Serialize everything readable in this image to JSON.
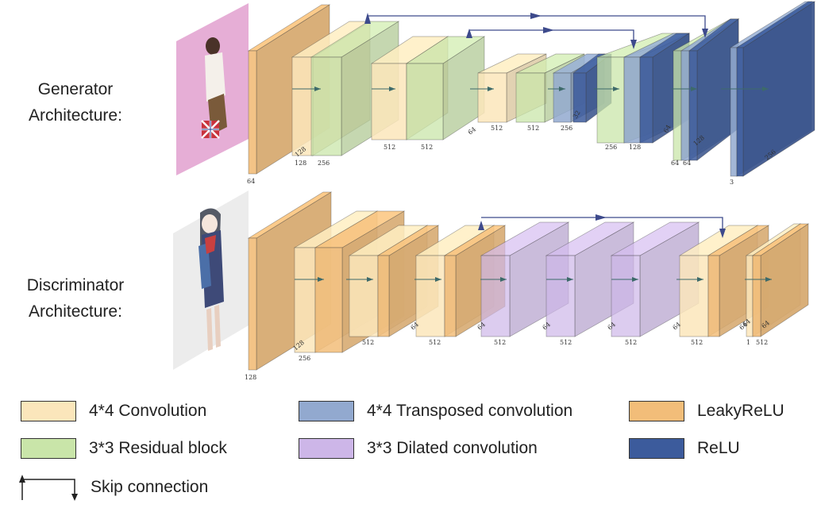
{
  "rows": {
    "generator": {
      "label_line1": "Generator",
      "label_line2": "Architecture:"
    },
    "discriminator": {
      "label_line1": "Discriminator",
      "label_line2": "Architecture:"
    }
  },
  "generator_labels": [
    "64",
    "128",
    "256",
    "128",
    "512",
    "512",
    "64",
    "512",
    "512",
    "256",
    "32",
    "256",
    "128",
    "64",
    "64",
    "64",
    "128",
    "3",
    "256"
  ],
  "discriminator_labels": [
    "128",
    "256",
    "128",
    "512",
    "64",
    "512",
    "64",
    "512",
    "64",
    "512",
    "64",
    "512",
    "64",
    "512",
    "64",
    "512",
    "64",
    "1",
    "64"
  ],
  "legend": {
    "conv4": {
      "label": "4*4 Convolution",
      "color": "#fbe6bb"
    },
    "residual": {
      "label": "3*3 Residual block",
      "color": "#c9e5a9"
    },
    "transposed": {
      "label": "4*4 Transposed convolution",
      "color": "#92a9cf"
    },
    "dilated": {
      "label": "3*3 Dilated convolution",
      "color": "#cdb6e8"
    },
    "leaky": {
      "label": "LeakyReLU",
      "color": "#f2bd79"
    },
    "relu": {
      "label": "ReLU",
      "color": "#3c5b9c"
    },
    "skip": {
      "label": "Skip connection"
    }
  },
  "colors": {
    "conv": "#fbe6bb",
    "residual": "#c9e5a9",
    "transposed": "#92a9cf",
    "dilated": "#cdb6e8",
    "leaky": "#f2bd79",
    "relu": "#3c5b9c",
    "arrow": "#3d4a8c",
    "inner_arrow": "#3d6a6a"
  }
}
